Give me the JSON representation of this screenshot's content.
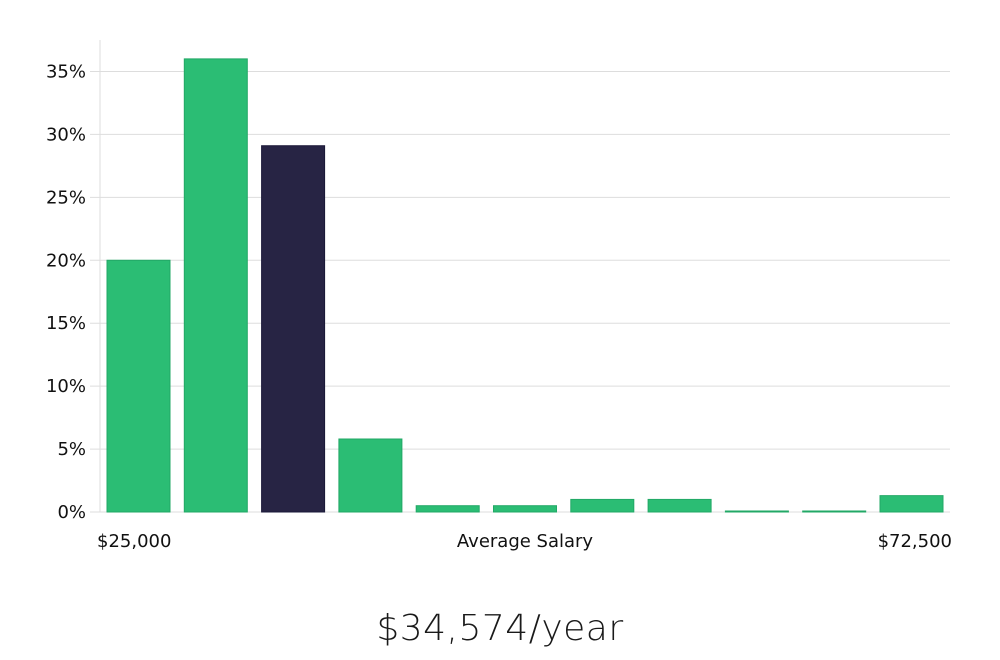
{
  "chart_data": {
    "type": "bar",
    "xlabel": "Average Salary",
    "x_start_label": "$25,000",
    "x_end_label": "$72,500",
    "ylim": [
      0,
      37.5
    ],
    "yticks": [
      0,
      5,
      10,
      15,
      20,
      25,
      30,
      35
    ],
    "ytick_labels": [
      "0%",
      "5%",
      "10%",
      "15%",
      "20%",
      "25%",
      "30%",
      "35%"
    ],
    "values": [
      20,
      36,
      29.1,
      5.8,
      0.5,
      0.5,
      1.0,
      1.0,
      0.08,
      0.08,
      1.3
    ],
    "highlight_index": 2,
    "colors": {
      "bar": "#2bbd74",
      "highlight": "#272444"
    }
  },
  "summary": {
    "salary_text": "$34,574/year"
  }
}
